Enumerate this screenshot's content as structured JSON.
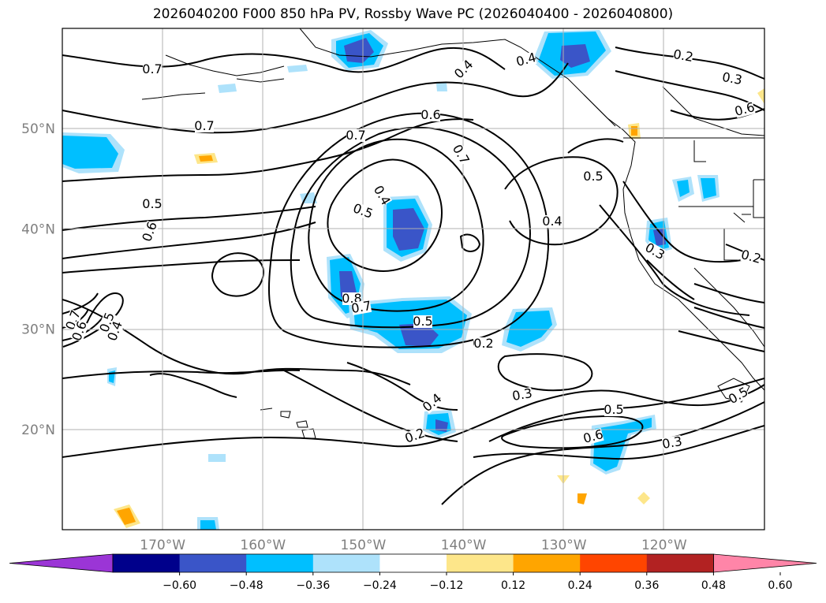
{
  "title": "2026040200 F000 850 hPa PV, Rossby Wave PC (2026040400 - 2026040800)",
  "map": {
    "lon_range": [
      -180,
      -110
    ],
    "lat_range": [
      10,
      60
    ],
    "lat_ticks": [
      {
        "value": 50,
        "label": "50°N"
      },
      {
        "value": 40,
        "label": "40°N"
      },
      {
        "value": 30,
        "label": "30°N"
      },
      {
        "value": 20,
        "label": "20°N"
      }
    ],
    "lon_ticks": [
      {
        "value": -170,
        "label": "170°W"
      },
      {
        "value": -160,
        "label": "160°W"
      },
      {
        "value": -150,
        "label": "150°W"
      },
      {
        "value": -140,
        "label": "140°W"
      },
      {
        "value": -130,
        "label": "130°W"
      },
      {
        "value": -120,
        "label": "120°W"
      }
    ],
    "grid": true,
    "contour_labels": [
      "0.7",
      "0.7",
      "0.7",
      "0.7",
      "0.6",
      "0.6",
      "0.5",
      "0.5",
      "0.5",
      "0.4",
      "0.4",
      "0.4",
      "0.4",
      "0.2",
      "0.2",
      "0.2",
      "0.3",
      "0.3",
      "0.8",
      "0.7",
      "0.5",
      "0.4",
      "0.6",
      "0.5",
      "0.2",
      "0.6",
      "0.3",
      "0.5",
      "0.7",
      "0.6",
      "0.5",
      "0.4",
      "0.4",
      "0.2",
      "0.3"
    ]
  },
  "colorbar": {
    "ticks": [
      "−0.60",
      "−0.48",
      "−0.36",
      "−0.24",
      "−0.12",
      "0.12",
      "0.24",
      "0.36",
      "0.48",
      "0.60"
    ],
    "colors": [
      "#9b35d6",
      "#00008b",
      "#3a55c8",
      "#00bfff",
      "#aee2fb",
      "#ffffff",
      "#fde68a",
      "#ffa500",
      "#ff4500",
      "#b22222",
      "#ff85a8"
    ],
    "extend": "both"
  }
}
